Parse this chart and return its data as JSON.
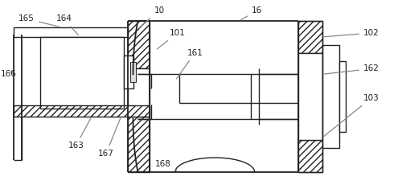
{
  "bg_color": "#ffffff",
  "line_color": "#222222",
  "hatch_color": "#666666",
  "figsize": [
    5.0,
    2.4
  ],
  "dpi": 100,
  "annotation_color": "#888888"
}
